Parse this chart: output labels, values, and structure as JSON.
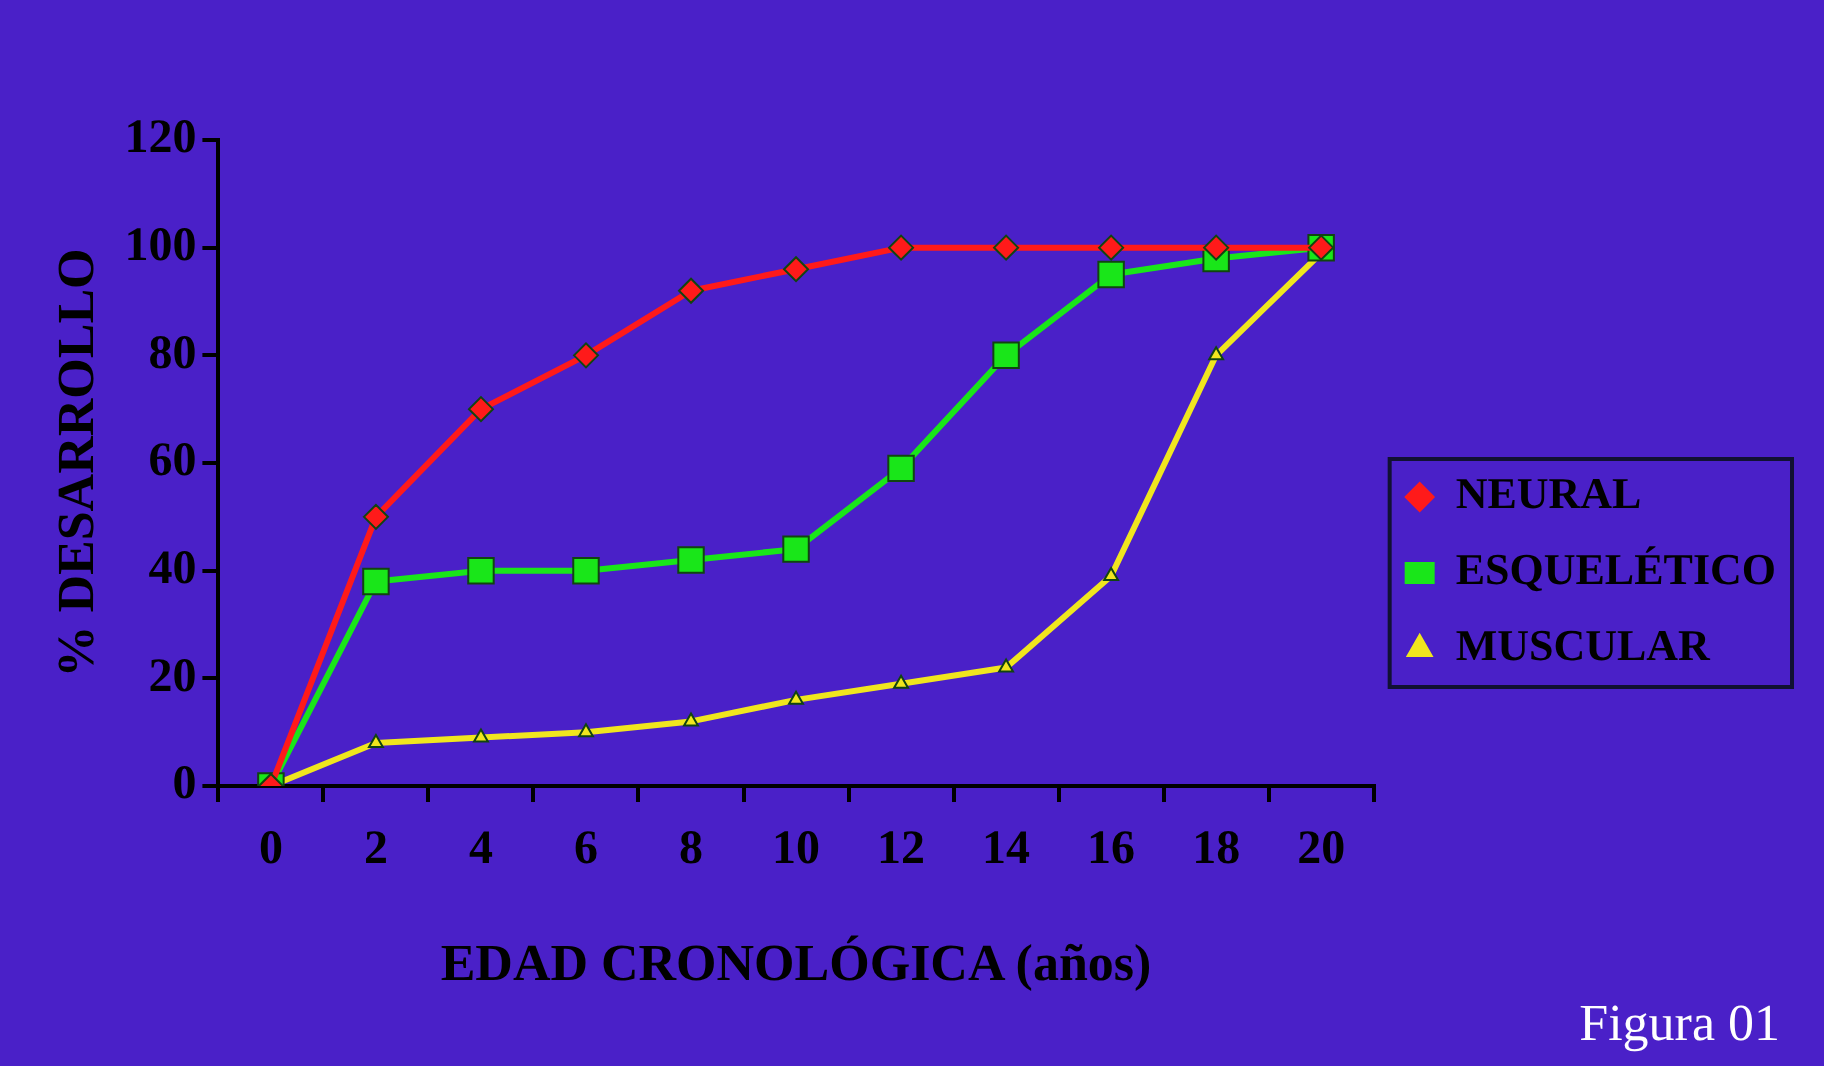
{
  "chart_data": {
    "type": "line",
    "xlabel": "EDAD CRONOLÓGICA (años)",
    "ylabel": "% DESARROLLO",
    "categories": [
      "0",
      "2",
      "4",
      "6",
      "8",
      "10",
      "12",
      "14",
      "16",
      "18",
      "20"
    ],
    "series": [
      {
        "name": "NEURAL",
        "color": "#ff1a1a",
        "marker": "diamond",
        "values": [
          0,
          50,
          70,
          80,
          92,
          96,
          100,
          100,
          100,
          100,
          100
        ]
      },
      {
        "name": "ESQUELÉTICO",
        "color": "#19e619",
        "marker": "square",
        "values": [
          0,
          38,
          40,
          40,
          42,
          44,
          59,
          80,
          95,
          98,
          100
        ]
      },
      {
        "name": "MUSCULAR",
        "color": "#f0e61e",
        "marker": "triangle",
        "values": [
          0,
          8,
          9,
          10,
          12,
          16,
          19,
          22,
          39,
          80,
          99
        ]
      }
    ],
    "ylim": [
      0,
      120
    ],
    "yticks": [
      0,
      20,
      40,
      60,
      80,
      100,
      120
    ],
    "grid": false,
    "legend": "right",
    "line_style": "solid",
    "annotations": [
      "Figura 01"
    ]
  }
}
